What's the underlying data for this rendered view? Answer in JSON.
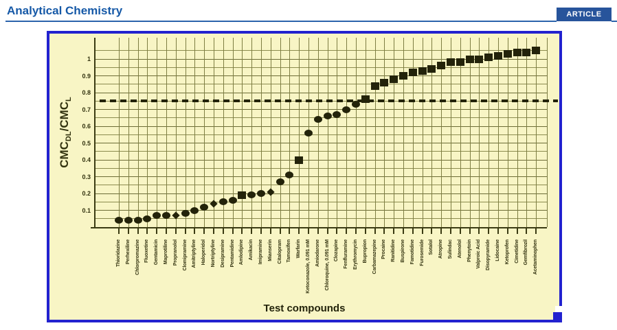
{
  "header": {
    "journal": "Analytical Chemistry",
    "badge": "ARTICLE",
    "accent_color": "#1659a7",
    "badge_bg": "#27549b",
    "rule_color": "#2a62ab"
  },
  "figure": {
    "frame_color": "#2222cf",
    "plot_background": "#f8f5c5",
    "grid_color": "#7d7d42",
    "axis_color": "#3a3a12",
    "ink_color": "#23230a",
    "yticks": [
      "0.1",
      "0.2",
      "0.3",
      "0.4",
      "0.5",
      "0.6",
      "0.7",
      "0.8",
      "0.9",
      "1"
    ],
    "ylabel": {
      "p1": "CMC",
      "s1": "DL",
      "p2": "/CMC",
      "s2": "L"
    },
    "xlabel": "Test compounds"
  },
  "chart_data": {
    "type": "scatter",
    "title": "",
    "xlabel": "Test compounds",
    "ylabel": "CMC_DL/CMC_L",
    "ylim": [
      0,
      1.1
    ],
    "grid": true,
    "threshold_line": 0.75,
    "categories": [
      "Thioridazine",
      "Perhexiline",
      "Chlorpromazine",
      "Fluoxetine",
      "Gentamicin",
      "Maprotiline",
      "Propranolol",
      "Clomipramine",
      "Amitriptyline",
      "Haloperidol",
      "Nortriptyline",
      "Desipramine",
      "Pentamidine",
      "Amlodipine",
      "Amikacin",
      "Imipramine",
      "Mianserin",
      "Citalopram",
      "Tamoxifen",
      "Warfarin",
      "Ketoconazole, 0.091 mM",
      "Amiodarone",
      "Chloroquine, 0.091 mM",
      "Clozapine",
      "Fenfluramine",
      "Erythromycin",
      "Bupropion",
      "Carbamazepine",
      "Procaine",
      "Ranitidine",
      "Buspirone",
      "Famotidine",
      "Furosemide",
      "Sotalol",
      "Atropine",
      "Sulindac",
      "Atenolol",
      "Phenytoin",
      "Valproic Acid",
      "Disopyramide",
      "Lidocaine",
      "Ketoprofen",
      "Cimetidine",
      "Gemfibrozil",
      "Acetaminophen"
    ],
    "values": [
      0.04,
      0.04,
      0.04,
      0.05,
      0.07,
      0.07,
      0.07,
      0.08,
      0.1,
      0.12,
      0.14,
      0.15,
      0.16,
      0.19,
      0.19,
      0.2,
      0.21,
      0.27,
      0.31,
      0.4,
      0.56,
      0.64,
      0.66,
      0.67,
      0.7,
      0.73,
      0.76,
      0.84,
      0.86,
      0.88,
      0.9,
      0.92,
      0.93,
      0.94,
      0.96,
      0.98,
      0.98,
      1.0,
      1.0,
      1.01,
      1.02,
      1.03,
      1.04,
      1.04,
      1.05
    ],
    "markers": [
      "circle",
      "circle",
      "circle",
      "circle",
      "circle",
      "circle",
      "diamond",
      "circle",
      "circle",
      "circle",
      "diamond",
      "circle",
      "circle",
      "square",
      "circle",
      "circle",
      "diamond",
      "circle",
      "circle",
      "square",
      "circle",
      "circle",
      "circle",
      "circle",
      "circle",
      "circle",
      "square",
      "square",
      "square",
      "square",
      "square",
      "square",
      "square",
      "square",
      "square",
      "square",
      "square",
      "square",
      "square",
      "square",
      "square",
      "square",
      "square",
      "square",
      "square"
    ]
  }
}
